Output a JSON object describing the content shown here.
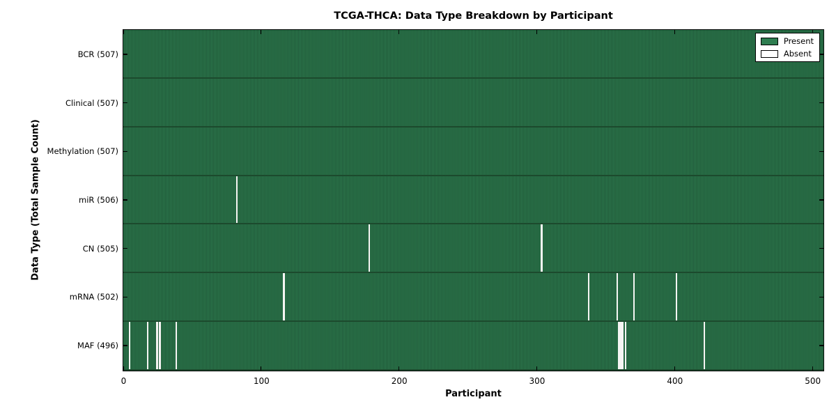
{
  "colors": {
    "present_green": "#2e7d50",
    "present_green_dark": "#1e5435",
    "row_separator": "#1c4a2d",
    "absent_white": "#f5f5f3",
    "frame_black": "#000000"
  },
  "chart_data": {
    "type": "heatmap",
    "title": "TCGA-THCA: Data Type Breakdown by Participant",
    "xlabel": "Participant",
    "ylabel": "Data Type (Total Sample Count)",
    "x_ticks": [
      0,
      100,
      200,
      300,
      400,
      500
    ],
    "x_max": 507,
    "total_participants": 507,
    "legend": {
      "present": "Present",
      "absent": "Absent"
    },
    "legend_position": "upper right",
    "grid": false,
    "rows": [
      {
        "data_type": "BCR",
        "label": "BCR (507)",
        "total_samples": 507,
        "absent_participants": []
      },
      {
        "data_type": "Clinical",
        "label": "Clinical (507)",
        "total_samples": 507,
        "absent_participants": []
      },
      {
        "data_type": "Methylation",
        "label": "Methylation (507)",
        "total_samples": 507,
        "absent_participants": []
      },
      {
        "data_type": "miR",
        "label": "miR (506)",
        "total_samples": 506,
        "absent_participants": [
          82
        ]
      },
      {
        "data_type": "CN",
        "label": "CN (505)",
        "total_samples": 505,
        "absent_participants": [
          178,
          303
        ]
      },
      {
        "data_type": "mRNA",
        "label": "mRNA (502)",
        "total_samples": 502,
        "absent_participants": [
          116,
          337,
          358,
          370,
          401
        ]
      },
      {
        "data_type": "MAF",
        "label": "MAF (496)",
        "total_samples": 496,
        "absent_participants": [
          4,
          17,
          24,
          26,
          38,
          359,
          360,
          361,
          362,
          364,
          421
        ]
      }
    ]
  }
}
